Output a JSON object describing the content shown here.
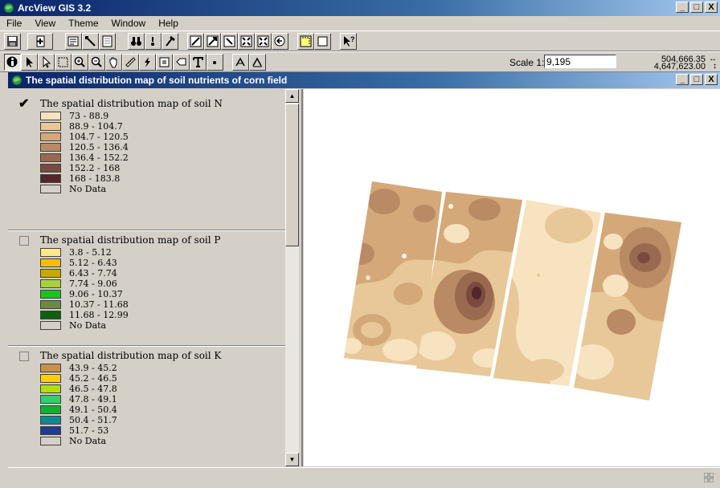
{
  "app": {
    "title": "ArcView GIS 3.2",
    "window_controls": [
      "_",
      "□",
      "X"
    ]
  },
  "menu": [
    "File",
    "View",
    "Theme",
    "Window",
    "Help"
  ],
  "toolbar": {
    "scale_label": "Scale 1:",
    "scale_value": "9,195",
    "coord_x": "504,666.35",
    "coord_y": "4,647,623.00",
    "coord_x_arrow": "↔",
    "coord_y_arrow": "↕"
  },
  "document": {
    "title": "The spatial distribution map of soil nutrients of corn field",
    "window_controls": [
      "_",
      "□",
      "X"
    ]
  },
  "themes": [
    {
      "name": "The spatial distribution map of soil N",
      "visible": true,
      "classes": [
        {
          "label": "73 - 88.9",
          "color": "#f7e3c0"
        },
        {
          "label": "88.9 - 104.7",
          "color": "#e8c898"
        },
        {
          "label": "104.7 - 120.5",
          "color": "#d4a878"
        },
        {
          "label": "120.5 - 136.4",
          "color": "#b98a64"
        },
        {
          "label": "136.4 - 152.2",
          "color": "#9a6a50"
        },
        {
          "label": "152.2 - 168",
          "color": "#7a4a40"
        },
        {
          "label": "168 - 183.8",
          "color": "#52262a"
        },
        {
          "label": "No Data",
          "color": "#d4d0c8"
        }
      ]
    },
    {
      "name": "The spatial distribution map of soil P",
      "visible": false,
      "classes": [
        {
          "label": "3.8 - 5.12",
          "color": "#ffe98a"
        },
        {
          "label": "5.12 - 6.43",
          "color": "#f0c000"
        },
        {
          "label": "6.43 - 7.74",
          "color": "#c8a800"
        },
        {
          "label": "7.74 - 9.06",
          "color": "#a8d040"
        },
        {
          "label": "9.06 - 10.37",
          "color": "#20c020"
        },
        {
          "label": "10.37 - 11.68",
          "color": "#6a8a40"
        },
        {
          "label": "11.68 - 12.99",
          "color": "#106010"
        },
        {
          "label": "No Data",
          "color": "#d4d0c8"
        }
      ]
    },
    {
      "name": "The spatial distribution map of soil K",
      "visible": false,
      "classes": [
        {
          "label": "43.9 - 45.2",
          "color": "#c8904c"
        },
        {
          "label": "45.2 - 46.5",
          "color": "#ffd000"
        },
        {
          "label": "46.5 - 47.8",
          "color": "#b0e000"
        },
        {
          "label": "47.8 - 49.1",
          "color": "#30d070"
        },
        {
          "label": "49.1 - 50.4",
          "color": "#10b030"
        },
        {
          "label": "50.4 - 51.7",
          "color": "#108890"
        },
        {
          "label": "51.7 - 53",
          "color": "#1e3c90"
        },
        {
          "label": "No Data",
          "color": "#d4d0c8"
        }
      ]
    }
  ]
}
